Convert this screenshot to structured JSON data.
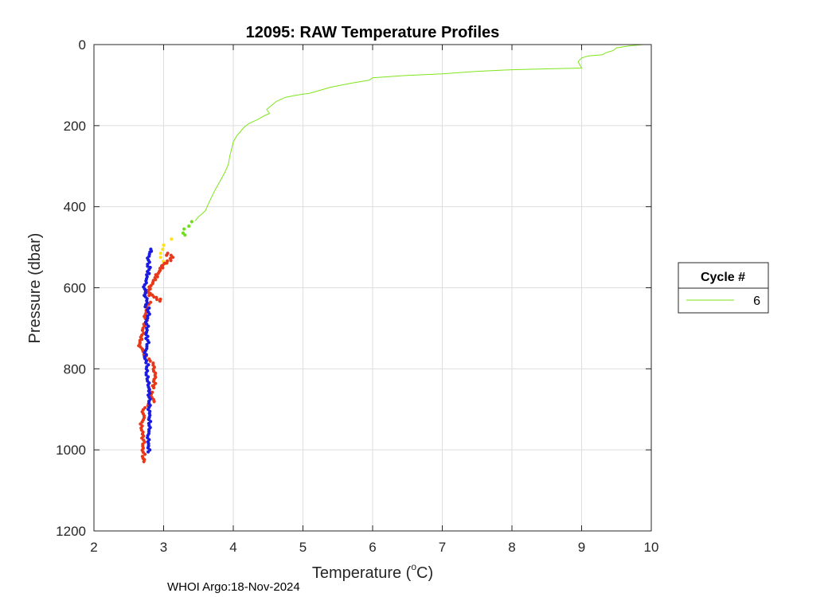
{
  "chart_data": {
    "type": "scatter",
    "title": "12095: RAW Temperature Profiles",
    "xlabel": "Temperature (",
    "xlabel_degree": "o",
    "xlabel_unit": "C)",
    "ylabel": "Pressure (dbar)",
    "xlim": [
      2,
      10
    ],
    "ylim": [
      0,
      1200
    ],
    "y_reversed": true,
    "xticks": [
      2,
      3,
      4,
      5,
      6,
      7,
      8,
      9,
      10
    ],
    "yticks": [
      0,
      200,
      400,
      600,
      800,
      1000,
      1200
    ],
    "grid": true,
    "legend": {
      "title": "Cycle #",
      "location": "outside-right",
      "entries": [
        {
          "label": "6",
          "color": "#7fe61a"
        }
      ]
    },
    "series": [
      {
        "name": "6",
        "style": "line",
        "color": "#7fe61a",
        "points": [
          [
            9.88,
            0
          ],
          [
            9.7,
            3
          ],
          [
            9.5,
            8
          ],
          [
            9.45,
            15
          ],
          [
            9.35,
            20
          ],
          [
            9.3,
            25
          ],
          [
            9.1,
            28
          ],
          [
            9.0,
            33
          ],
          [
            8.95,
            42
          ],
          [
            8.98,
            52
          ],
          [
            9.0,
            58
          ],
          [
            8.5,
            60
          ],
          [
            8.0,
            62
          ],
          [
            7.5,
            66
          ],
          [
            7.0,
            72
          ],
          [
            6.5,
            76
          ],
          [
            6.0,
            82
          ],
          [
            5.95,
            88
          ],
          [
            5.7,
            95
          ],
          [
            5.4,
            105
          ],
          [
            5.1,
            120
          ],
          [
            4.9,
            125
          ],
          [
            4.75,
            130
          ],
          [
            4.62,
            140
          ],
          [
            4.55,
            150
          ],
          [
            4.48,
            160
          ],
          [
            4.52,
            170
          ],
          [
            4.45,
            175
          ],
          [
            4.35,
            185
          ],
          [
            4.22,
            195
          ],
          [
            4.15,
            205
          ],
          [
            4.1,
            215
          ],
          [
            4.05,
            225
          ],
          [
            4.0,
            240
          ],
          [
            3.98,
            255
          ],
          [
            3.95,
            275
          ],
          [
            3.93,
            295
          ],
          [
            3.88,
            315
          ],
          [
            3.8,
            340
          ],
          [
            3.72,
            365
          ],
          [
            3.65,
            390
          ],
          [
            3.6,
            410
          ],
          [
            3.5,
            425
          ],
          [
            3.45,
            435
          ]
        ]
      },
      {
        "name": "6 (green dots)",
        "style": "dots",
        "color": "#6ee01a",
        "points": [
          [
            3.4,
            437
          ],
          [
            3.35,
            448
          ],
          [
            3.3,
            455
          ],
          [
            3.28,
            465
          ],
          [
            3.3,
            470
          ]
        ]
      },
      {
        "name": "6 (yellow dots)",
        "style": "dots",
        "color": "#ffe01a",
        "points": [
          [
            3.12,
            480
          ],
          [
            3.0,
            495
          ],
          [
            2.98,
            505
          ],
          [
            2.97,
            515
          ],
          [
            2.96,
            525
          ],
          [
            2.99,
            535
          ],
          [
            3.02,
            540
          ]
        ]
      },
      {
        "name": "6 (red dots)",
        "style": "dots",
        "color": "#e8381a",
        "points": [
          [
            3.05,
            515
          ],
          [
            3.12,
            520
          ],
          [
            3.1,
            528
          ],
          [
            3.05,
            534
          ],
          [
            3.0,
            540
          ],
          [
            2.98,
            546
          ],
          [
            2.95,
            552
          ],
          [
            2.93,
            560
          ],
          [
            2.9,
            568
          ],
          [
            2.88,
            575
          ],
          [
            2.85,
            582
          ],
          [
            2.83,
            590
          ],
          [
            2.8,
            598
          ],
          [
            2.78,
            606
          ],
          [
            2.8,
            614
          ],
          [
            2.85,
            618
          ],
          [
            2.9,
            624
          ],
          [
            2.95,
            628
          ],
          [
            2.8,
            636
          ],
          [
            2.76,
            646
          ],
          [
            2.75,
            656
          ],
          [
            2.73,
            666
          ],
          [
            2.75,
            676
          ],
          [
            2.72,
            690
          ],
          [
            2.7,
            700
          ],
          [
            2.7,
            712
          ],
          [
            2.68,
            722
          ],
          [
            2.66,
            730
          ],
          [
            2.65,
            738
          ],
          [
            2.68,
            746
          ],
          [
            2.7,
            752
          ],
          [
            2.72,
            760
          ],
          [
            2.74,
            768
          ],
          [
            2.8,
            776
          ],
          [
            2.85,
            786
          ],
          [
            2.86,
            796
          ],
          [
            2.87,
            806
          ],
          [
            2.88,
            816
          ],
          [
            2.86,
            826
          ],
          [
            2.87,
            836
          ],
          [
            2.85,
            842
          ],
          [
            2.8,
            852
          ],
          [
            2.83,
            858
          ],
          [
            2.82,
            866
          ],
          [
            2.86,
            876
          ],
          [
            2.78,
            886
          ],
          [
            2.72,
            896
          ],
          [
            2.7,
            906
          ],
          [
            2.72,
            916
          ],
          [
            2.7,
            926
          ],
          [
            2.68,
            936
          ],
          [
            2.68,
            946
          ],
          [
            2.7,
            956
          ],
          [
            2.7,
            966
          ],
          [
            2.72,
            976
          ],
          [
            2.7,
            986
          ],
          [
            2.7,
            996
          ],
          [
            2.72,
            1006
          ],
          [
            2.7,
            1016
          ],
          [
            2.72,
            1024
          ]
        ]
      },
      {
        "name": "6 (blue dots)",
        "style": "dots",
        "color": "#1a1ae0",
        "points": [
          [
            2.82,
            505
          ],
          [
            2.8,
            512
          ],
          [
            2.78,
            522
          ],
          [
            2.79,
            532
          ],
          [
            2.77,
            542
          ],
          [
            2.8,
            550
          ],
          [
            2.78,
            560
          ],
          [
            2.76,
            568
          ],
          [
            2.75,
            578
          ],
          [
            2.74,
            588
          ],
          [
            2.72,
            598
          ],
          [
            2.74,
            606
          ],
          [
            2.73,
            614
          ],
          [
            2.75,
            622
          ],
          [
            2.76,
            632
          ],
          [
            2.74,
            642
          ],
          [
            2.78,
            650
          ],
          [
            2.79,
            660
          ],
          [
            2.77,
            670
          ],
          [
            2.75,
            680
          ],
          [
            2.77,
            690
          ],
          [
            2.76,
            700
          ],
          [
            2.75,
            710
          ],
          [
            2.76,
            720
          ],
          [
            2.78,
            730
          ],
          [
            2.76,
            740
          ],
          [
            2.75,
            750
          ],
          [
            2.74,
            760
          ],
          [
            2.73,
            770
          ],
          [
            2.75,
            780
          ],
          [
            2.77,
            790
          ],
          [
            2.76,
            800
          ],
          [
            2.75,
            810
          ],
          [
            2.77,
            820
          ],
          [
            2.78,
            830
          ],
          [
            2.78,
            840
          ],
          [
            2.79,
            850
          ],
          [
            2.79,
            860
          ],
          [
            2.8,
            870
          ],
          [
            2.79,
            880
          ],
          [
            2.8,
            890
          ],
          [
            2.79,
            900
          ],
          [
            2.8,
            910
          ],
          [
            2.79,
            920
          ],
          [
            2.8,
            930
          ],
          [
            2.8,
            940
          ],
          [
            2.79,
            950
          ],
          [
            2.78,
            960
          ],
          [
            2.78,
            970
          ],
          [
            2.78,
            980
          ],
          [
            2.78,
            990
          ],
          [
            2.79,
            1000
          ]
        ]
      }
    ]
  },
  "footer": {
    "text": "WHOI Argo:18-Nov-2024"
  }
}
